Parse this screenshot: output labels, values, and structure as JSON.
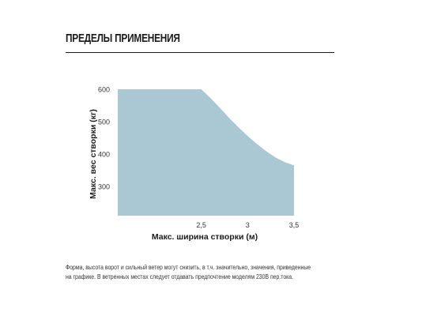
{
  "heading": {
    "title": "ПРЕДЕЛЫ ПРИМЕНЕНИЯ"
  },
  "chart_data": {
    "type": "area",
    "title": "",
    "xlabel": "Макс. ширина створки (м)",
    "ylabel": "Макс. вес створки (кг)",
    "xlim": [
      1.6,
      3.5
    ],
    "ylim": [
      210,
      600
    ],
    "x_ticks": [
      {
        "value": 2.5,
        "label": "2,5"
      },
      {
        "value": 3,
        "label": "3"
      },
      {
        "value": 3.5,
        "label": "3,5"
      }
    ],
    "y_ticks": [
      {
        "value": 600,
        "label": "600"
      },
      {
        "value": 500,
        "label": "500"
      },
      {
        "value": 400,
        "label": "400"
      },
      {
        "value": 300,
        "label": "300"
      }
    ],
    "x": [
      1.6,
      2.0,
      2.5,
      2.6,
      2.7,
      2.8,
      2.9,
      3.0,
      3.1,
      3.2,
      3.3,
      3.4,
      3.5
    ],
    "y": [
      600,
      600,
      600,
      573,
      543,
      512,
      483,
      456,
      431,
      409,
      390,
      375,
      365
    ],
    "baseline": 210,
    "fill_color": "#a9c8d4",
    "grid": false
  },
  "footnote": {
    "line1": "Форма, высота ворот и сильный ветер могут снизить, в т.ч. значительно, значения, приведенные",
    "line2": "на графике. В ветренных местах следует отдавать предпочтение моделям 230В пер.тока."
  }
}
